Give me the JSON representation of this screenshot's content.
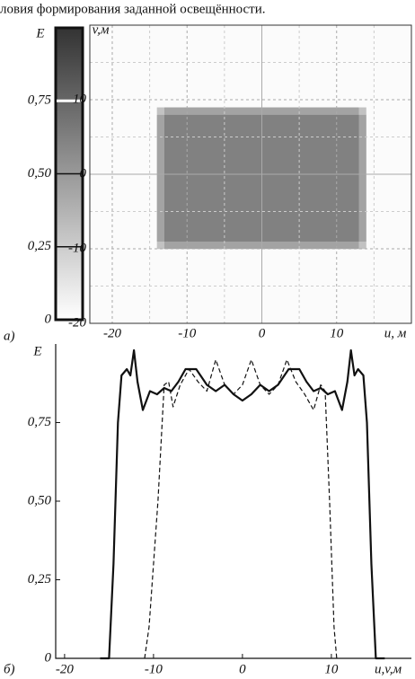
{
  "caption": "ловия формирования заданной освещённости.",
  "chart_data": [
    {
      "type": "colorbar",
      "panel": "а)",
      "ylabel": "E",
      "ylim": [
        0,
        1
      ],
      "yticks": [
        0,
        {
          "value": 0.25,
          "label": "0,25"
        },
        {
          "value": 0.5,
          "label": "0,50"
        },
        {
          "value": 0.75,
          "label": "0,75"
        }
      ],
      "highlight": 0.75
    },
    {
      "type": "heatmap",
      "xlabel": "u, м",
      "ylabel": "v,м",
      "xlim": [
        -23,
        20
      ],
      "ylim": [
        -20,
        20
      ],
      "xticks": [
        -20,
        -10,
        0,
        10
      ],
      "yticks": [
        -20,
        -10,
        0,
        10
      ],
      "grid": true,
      "xbins": [
        -23,
        -14,
        -13,
        13,
        14,
        20
      ],
      "ybins": [
        -20,
        -10,
        -9,
        8,
        9,
        20
      ],
      "values": [
        [
          0.02,
          0.02,
          0.02,
          0.02,
          0.02
        ],
        [
          0.02,
          0.3,
          0.45,
          0.3,
          0.02
        ],
        [
          0.02,
          0.45,
          0.62,
          0.45,
          0.02
        ],
        [
          0.02,
          0.3,
          0.45,
          0.3,
          0.02
        ],
        [
          0.02,
          0.02,
          0.02,
          0.02,
          0.02
        ]
      ]
    },
    {
      "type": "line",
      "panel": "б)",
      "xlabel": "u,v,м",
      "ylabel": "E",
      "xlim": [
        -21,
        19
      ],
      "ylim": [
        0,
        1
      ],
      "xticks": [
        -20,
        -10,
        0,
        10
      ],
      "yticks": [
        0,
        {
          "value": 0.25,
          "label": "0,25"
        },
        {
          "value": 0.5,
          "label": "0,50"
        },
        {
          "value": 0.75,
          "label": "0,75"
        }
      ],
      "series": [
        {
          "color": "#111111",
          "style": "solid",
          "x": [
            -16,
            -15,
            -14.5,
            -14,
            -13.6,
            -13,
            -12.6,
            -12.2,
            -11.8,
            -11.2,
            -10.4,
            -9.6,
            -8.8,
            -8,
            -7.2,
            -6.4,
            -5.2,
            -4,
            -3,
            -2,
            -1,
            0,
            1,
            2,
            3,
            4,
            5.2,
            6.4,
            7.2,
            8,
            8.8,
            9.6,
            10.4,
            11.2,
            11.8,
            12.2,
            12.6,
            13,
            13.6,
            14,
            14.5,
            15,
            16
          ],
          "values": [
            0,
            0,
            0.3,
            0.75,
            0.9,
            0.92,
            0.9,
            0.98,
            0.88,
            0.79,
            0.85,
            0.84,
            0.86,
            0.85,
            0.88,
            0.92,
            0.92,
            0.87,
            0.85,
            0.87,
            0.84,
            0.82,
            0.84,
            0.87,
            0.85,
            0.87,
            0.92,
            0.92,
            0.88,
            0.85,
            0.86,
            0.84,
            0.85,
            0.79,
            0.88,
            0.98,
            0.9,
            0.92,
            0.9,
            0.75,
            0.3,
            0,
            0
          ]
        },
        {
          "color": "#111111",
          "style": "dashed",
          "x": [
            -11,
            -10.5,
            -9.5,
            -8.8,
            -8.3,
            -7.8,
            -7,
            -6,
            -5,
            -4,
            -3,
            -2,
            -1,
            0,
            1,
            2,
            3,
            4,
            5,
            6,
            7,
            8,
            8.8,
            9.3,
            9.8,
            10.3,
            10.6
          ],
          "values": [
            0,
            0.1,
            0.5,
            0.87,
            0.88,
            0.8,
            0.87,
            0.92,
            0.88,
            0.85,
            0.95,
            0.87,
            0.84,
            0.87,
            0.95,
            0.87,
            0.84,
            0.87,
            0.95,
            0.88,
            0.84,
            0.79,
            0.87,
            0.85,
            0.5,
            0.1,
            0
          ]
        }
      ]
    }
  ]
}
